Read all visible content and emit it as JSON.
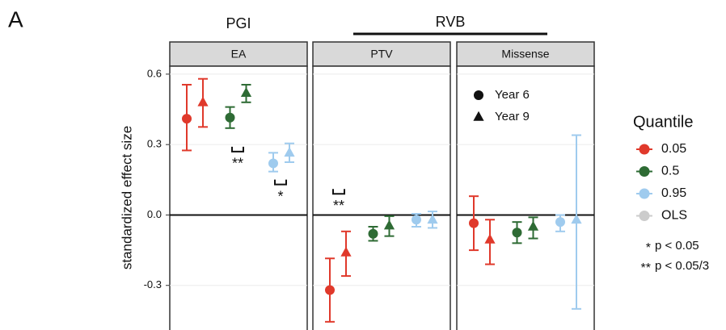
{
  "chart_data": {
    "type": "errorbar",
    "panel_label": "A",
    "groups": [
      {
        "label": "PGI"
      },
      {
        "label": "RVB"
      }
    ],
    "ylabel": "standardized effect size",
    "ylim": [
      -0.49,
      0.634
    ],
    "yticks": [
      -0.3,
      {
        "value": 0,
        "label": "0.0"
      },
      0.3,
      0.6
    ],
    "grid": true,
    "legend_title": "Quantile",
    "quantiles": [
      {
        "name": "0.05",
        "color": "#e0392b"
      },
      {
        "name": "0.5",
        "color": "#2e6b34"
      },
      {
        "name": "0.95",
        "color": "#9fcbee"
      },
      {
        "name": "OLS",
        "color": "#cccccc"
      }
    ],
    "years": [
      {
        "name": "Year 6",
        "shape": "circle"
      },
      {
        "name": "Year 9",
        "shape": "triangle"
      }
    ],
    "significance": [
      {
        "symbol": "*",
        "label": "p < 0.05"
      },
      {
        "symbol": "**",
        "label": "p < 0.05/3"
      }
    ],
    "facets": [
      {
        "name": "EA",
        "annotations": [
          "**",
          "*"
        ],
        "quantiles": [
          {
            "years": [
              {
                "value": 0.41,
                "lower": 0.275,
                "upper": 0.555
              },
              {
                "value": 0.48,
                "lower": 0.375,
                "upper": 0.58
              }
            ]
          },
          {
            "years": [
              {
                "value": 0.415,
                "lower": 0.37,
                "upper": 0.46
              },
              {
                "value": 0.52,
                "lower": 0.48,
                "upper": 0.555
              }
            ]
          },
          {
            "years": [
              {
                "value": 0.22,
                "lower": 0.185,
                "upper": 0.265
              },
              {
                "value": 0.265,
                "lower": 0.225,
                "upper": 0.305
              }
            ]
          }
        ]
      },
      {
        "name": "PTV",
        "annotations": [
          "**"
        ],
        "quantiles": [
          {
            "years": [
              {
                "value": -0.32,
                "lower": -0.455,
                "upper": -0.185
              },
              {
                "value": -0.16,
                "lower": -0.26,
                "upper": -0.07
              }
            ]
          },
          {
            "years": [
              {
                "value": -0.08,
                "lower": -0.11,
                "upper": -0.05
              },
              {
                "value": -0.045,
                "lower": -0.09,
                "upper": -0.005
              }
            ]
          },
          {
            "years": [
              {
                "value": -0.02,
                "lower": -0.05,
                "upper": 0.005
              },
              {
                "value": -0.02,
                "lower": -0.055,
                "upper": 0.015
              }
            ]
          }
        ]
      },
      {
        "name": "Missense",
        "annotations": [],
        "quantiles": [
          {
            "years": [
              {
                "value": -0.035,
                "lower": -0.15,
                "upper": 0.08
              },
              {
                "value": -0.105,
                "lower": -0.21,
                "upper": -0.02
              }
            ]
          },
          {
            "years": [
              {
                "value": -0.075,
                "lower": -0.12,
                "upper": -0.03
              },
              {
                "value": -0.05,
                "lower": -0.1,
                "upper": -0.01
              }
            ]
          },
          {
            "years": [
              {
                "value": -0.03,
                "lower": -0.07,
                "upper": 0.0
              },
              {
                "value": -0.02,
                "lower": -0.4,
                "upper": 0.34
              }
            ]
          }
        ]
      }
    ]
  }
}
